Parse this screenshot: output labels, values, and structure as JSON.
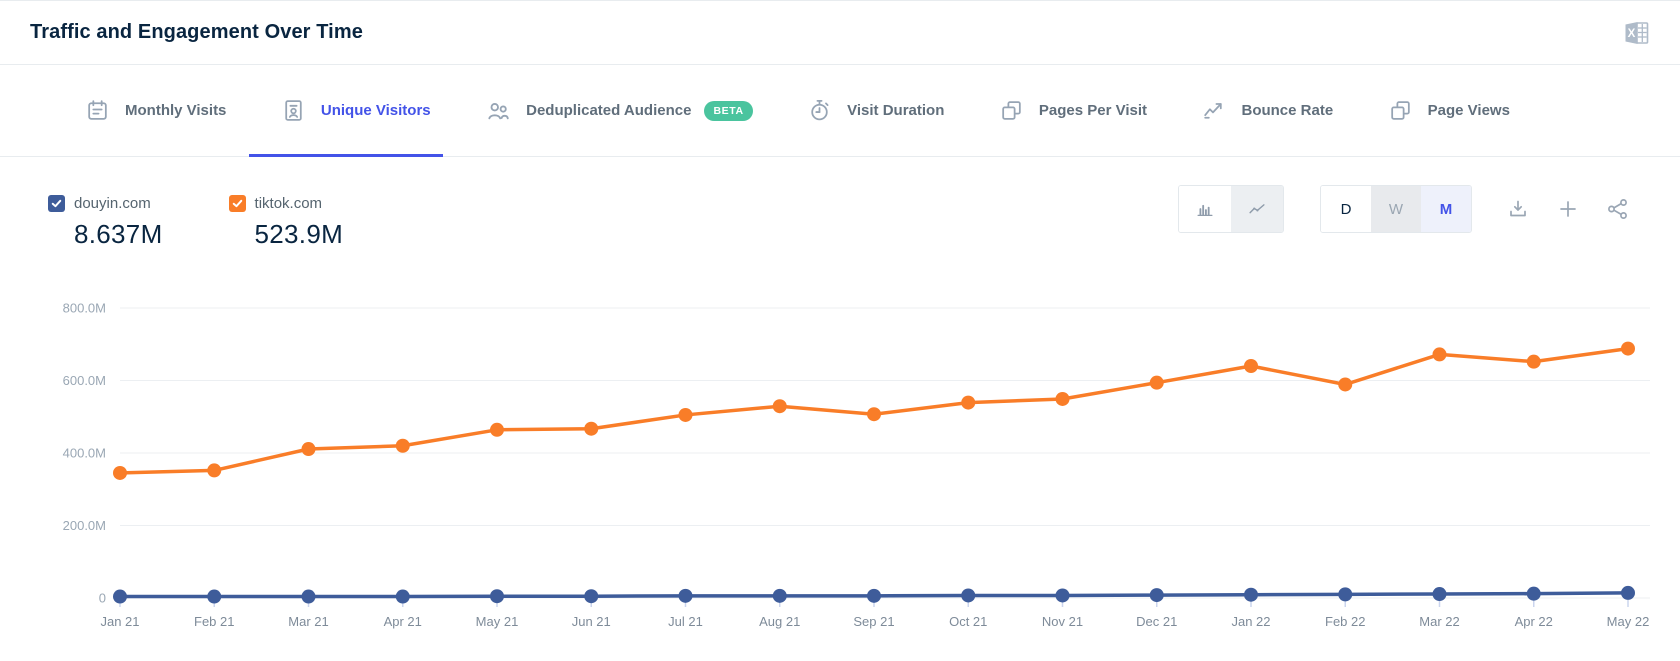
{
  "header": {
    "title": "Traffic and Engagement Over Time"
  },
  "tabs": [
    {
      "label": "Monthly Visits",
      "icon": "calendar-icon",
      "active": false
    },
    {
      "label": "Unique Visitors",
      "icon": "id-card-icon",
      "active": true
    },
    {
      "label": "Deduplicated Audience",
      "icon": "people-icon",
      "active": false,
      "badge": "BETA"
    },
    {
      "label": "Visit Duration",
      "icon": "stopwatch-icon",
      "active": false
    },
    {
      "label": "Pages Per Visit",
      "icon": "pages-icon",
      "active": false
    },
    {
      "label": "Bounce Rate",
      "icon": "trend-arrow-icon",
      "active": false
    },
    {
      "label": "Page Views",
      "icon": "pages-icon",
      "active": false
    }
  ],
  "legend": [
    {
      "domain": "douyin.com",
      "value": "8.637M",
      "color": "#3E5C9A",
      "checked": true
    },
    {
      "domain": "tiktok.com",
      "value": "523.9M",
      "color": "#F97D28",
      "checked": true
    }
  ],
  "controls": {
    "chart_types": [
      {
        "name": "bar-chart",
        "selected": false
      },
      {
        "name": "line-chart",
        "selected": true
      }
    ],
    "granularity": [
      {
        "label": "D",
        "state": "default"
      },
      {
        "label": "W",
        "state": "dimmed"
      },
      {
        "label": "M",
        "state": "selected"
      }
    ],
    "actions": [
      "download",
      "add",
      "share"
    ]
  },
  "colors": {
    "accent": "#4353E8",
    "douyin_series": "#3E5C9A",
    "tiktok_series": "#F97D28",
    "beta_badge": "#4AC49E",
    "gridline": "#ECEFF2",
    "axis_text": "#9AA7B4"
  },
  "chart_data": {
    "type": "line",
    "title": "Traffic and Engagement Over Time — Unique Visitors",
    "x": [
      "Jan 21",
      "Feb 21",
      "Mar 21",
      "Apr 21",
      "May 21",
      "Jun 21",
      "Jul 21",
      "Aug 21",
      "Sep 21",
      "Oct 21",
      "Nov 21",
      "Dec 21",
      "Jan 22",
      "Feb 22",
      "Mar 22",
      "Apr 22",
      "May 22"
    ],
    "series": [
      {
        "name": "douyin.com",
        "color": "#3E5C9A",
        "values_millions": [
          4,
          4,
          4,
          4,
          5,
          5,
          6,
          6,
          6,
          7,
          7,
          8,
          9,
          10,
          11,
          12,
          14
        ]
      },
      {
        "name": "tiktok.com",
        "color": "#F97D28",
        "values_millions": [
          345,
          352,
          411,
          420,
          464,
          467,
          505,
          529,
          507,
          539,
          549,
          594,
          640,
          589,
          672,
          652,
          688
        ]
      }
    ],
    "unit": "M (millions of unique visitors)",
    "ylim": [
      0,
      800
    ],
    "yticks": [
      {
        "label": "800.0M",
        "value": 800
      },
      {
        "label": "600.0M",
        "value": 600
      },
      {
        "label": "400.0M",
        "value": 400
      },
      {
        "label": "200.0M",
        "value": 200
      },
      {
        "label": "0",
        "value": 0
      }
    ],
    "grid": true,
    "legend_position": "top-left"
  }
}
